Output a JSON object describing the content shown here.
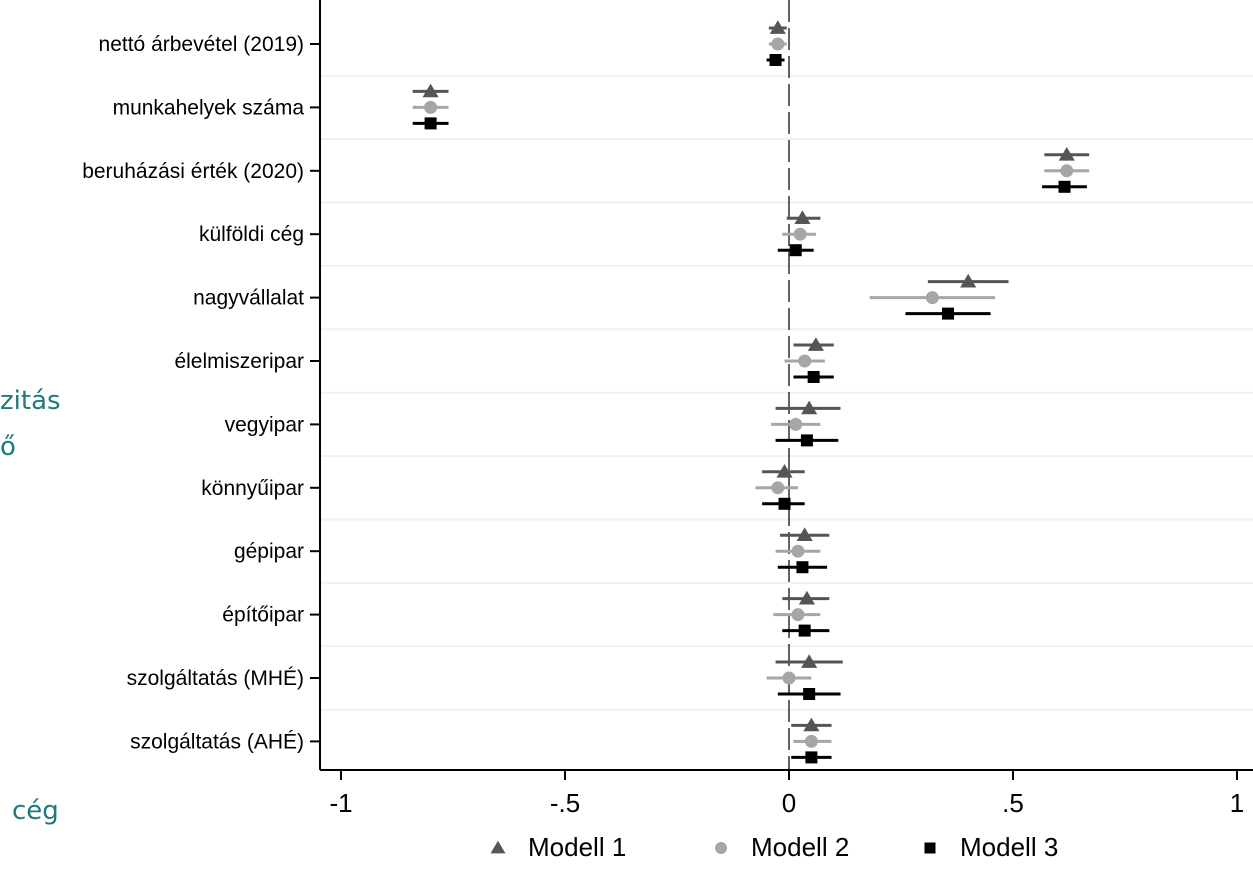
{
  "background_fragments": [
    "zitás",
    "ő",
    "cég"
  ],
  "chart_data": {
    "type": "scatter",
    "subtype": "coefficient-plot",
    "title": "",
    "xlabel": "",
    "ylabel": "",
    "xlim": [
      -1.05,
      1.05
    ],
    "x_ticks": [
      -1,
      -0.5,
      0,
      0.5,
      1
    ],
    "x_tick_labels": [
      "-1",
      "-.5",
      "0",
      ".5",
      "1"
    ],
    "reference_line_x": 0,
    "grid": "horizontal",
    "legend_position": "bottom",
    "categories": [
      "nettó árbevétel (2019)",
      "munkahelyek száma",
      "beruházási érték (2020)",
      "külföldi cég",
      "nagyvállalat",
      "élelmiszeripar",
      "vegyipar",
      "könnyűipar",
      "gépipar",
      "építőipar",
      "szolgáltatás (MHÉ)",
      "szolgáltatás (AHÉ)"
    ],
    "series": [
      {
        "name": "Modell 1",
        "marker": "triangle",
        "color": "#555555",
        "values": [
          -0.025,
          -0.8,
          0.62,
          0.03,
          0.4,
          0.06,
          0.045,
          -0.01,
          0.035,
          0.04,
          0.045,
          0.05
        ],
        "ci_low": [
          -0.045,
          -0.84,
          0.57,
          -0.005,
          0.31,
          0.01,
          -0.03,
          -0.06,
          -0.02,
          -0.015,
          -0.03,
          0.005
        ],
        "ci_high": [
          -0.005,
          -0.76,
          0.67,
          0.07,
          0.49,
          0.1,
          0.115,
          0.035,
          0.09,
          0.09,
          0.12,
          0.095
        ]
      },
      {
        "name": "Modell 2",
        "marker": "circle",
        "color": "#a6a6a6",
        "values": [
          -0.025,
          -0.8,
          0.62,
          0.025,
          0.32,
          0.035,
          0.015,
          -0.025,
          0.02,
          0.02,
          0.0,
          0.05
        ],
        "ci_low": [
          -0.045,
          -0.84,
          0.57,
          -0.015,
          0.18,
          -0.01,
          -0.04,
          -0.075,
          -0.03,
          -0.035,
          -0.05,
          0.01
        ],
        "ci_high": [
          -0.005,
          -0.76,
          0.67,
          0.06,
          0.46,
          0.08,
          0.07,
          0.02,
          0.07,
          0.07,
          0.05,
          0.095
        ]
      },
      {
        "name": "Modell 3",
        "marker": "square",
        "color": "#000000",
        "values": [
          -0.03,
          -0.8,
          0.615,
          0.015,
          0.355,
          0.055,
          0.04,
          -0.01,
          0.03,
          0.035,
          0.045,
          0.05
        ],
        "ci_low": [
          -0.05,
          -0.84,
          0.565,
          -0.025,
          0.26,
          0.01,
          -0.03,
          -0.06,
          -0.025,
          -0.015,
          -0.025,
          0.005
        ],
        "ci_high": [
          -0.01,
          -0.76,
          0.665,
          0.055,
          0.45,
          0.1,
          0.11,
          0.035,
          0.085,
          0.09,
          0.115,
          0.095
        ]
      }
    ]
  }
}
